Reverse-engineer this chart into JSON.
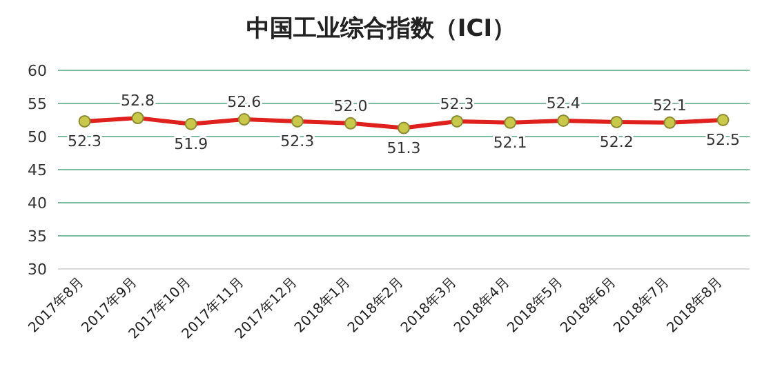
{
  "chart_data": {
    "type": "line",
    "title": "中国工业综合指数（ICI）",
    "categories": [
      "2017年8月",
      "2017年9月",
      "2017年10月",
      "2017年11月",
      "2017年12月",
      "2018年1月",
      "2018年2月",
      "2018年3月",
      "2018年4月",
      "2018年5月",
      "2018年6月",
      "2018年7月",
      "2018年8月"
    ],
    "series": [
      {
        "color": "#e0201c",
        "values": [
          52.3,
          52.8,
          51.9,
          52.6,
          52.3,
          52.0,
          51.3,
          52.3,
          52.1,
          52.4,
          52.2,
          52.1,
          52.5
        ]
      }
    ],
    "ylim": [
      30,
      60
    ],
    "yticks": [
      30,
      35,
      40,
      45,
      50,
      55,
      60
    ],
    "grid": "y",
    "marker": "circle",
    "line_style": "solid",
    "value_labels": [
      "52.3",
      "52.8",
      "51.9",
      "52.6",
      "52.3",
      "52.0",
      "51.3",
      "52.3",
      "52.1",
      "52.4",
      "52.2",
      "52.1",
      "52.5"
    ]
  }
}
